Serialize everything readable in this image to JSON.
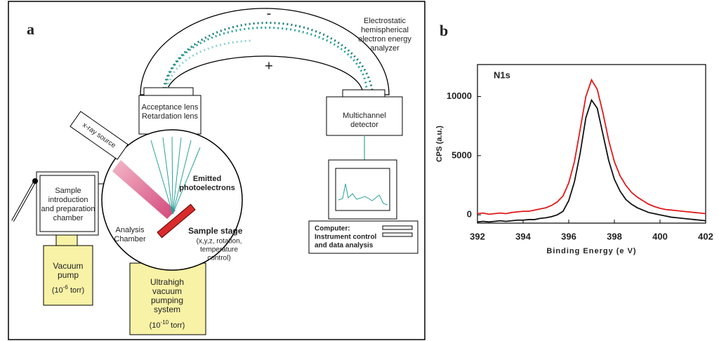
{
  "diagram": {
    "label": "a",
    "analyzer": [
      "Electrostatic",
      "hemispherical",
      "electron energy",
      "analyzer"
    ],
    "minus": "-",
    "plus": "+",
    "lens": [
      "Acceptance lens",
      "Retardation lens"
    ],
    "detector": [
      "Multichannel",
      "detector"
    ],
    "xray": "x-ray source",
    "emitted": [
      "Emitted",
      "photoelectrons"
    ],
    "intro": [
      "Sample",
      "introduction",
      "and preparation",
      "chamber"
    ],
    "analysis": [
      "Analysis",
      "Chamber"
    ],
    "stage": [
      "Sample stage",
      "(x,y,z, rotation,",
      "temperature",
      "control)"
    ],
    "computer": [
      "Computer:",
      "Instrument control",
      "and data analysis"
    ],
    "pump": {
      "lines": [
        "Vacuum",
        "pump"
      ],
      "pressure": [
        "(10",
        "-6",
        " torr)"
      ]
    },
    "uhv": {
      "lines": [
        "Ultrahigh",
        "vacuum",
        "pumping",
        "system"
      ],
      "pressure": [
        "(10",
        "-10",
        " torr)"
      ]
    }
  },
  "chart_data": {
    "type": "line",
    "label": "b",
    "title": "N1s",
    "x_label": "Binding Energy (e V)",
    "y_label": "CPS (a.u.)",
    "xlim": [
      392,
      402
    ],
    "xticks": [
      392,
      394,
      396,
      398,
      400,
      402
    ],
    "ylim": [
      -700,
      12700
    ],
    "yticks": [
      0,
      5000,
      10000
    ],
    "x": [
      392,
      392.25,
      392.5,
      392.75,
      393,
      393.25,
      393.5,
      393.75,
      394,
      394.25,
      394.5,
      394.75,
      395,
      395.25,
      395.5,
      395.75,
      396,
      396.25,
      396.5,
      396.75,
      397,
      397.25,
      397.5,
      397.75,
      398,
      398.25,
      398.5,
      398.75,
      399,
      399.25,
      399.5,
      399.75,
      400,
      400.25,
      400.5,
      400.75,
      401,
      401.25,
      401.5,
      401.75,
      402
    ],
    "series": [
      {
        "color": "#e0191b",
        "values": [
          100,
          150,
          50,
          100,
          150,
          100,
          200,
          250,
          300,
          300,
          400,
          500,
          600,
          800,
          1100,
          1600,
          2700,
          4500,
          7200,
          10000,
          11400,
          10600,
          8600,
          6300,
          4500,
          3300,
          2500,
          1900,
          1500,
          1200,
          900,
          700,
          550,
          450,
          400,
          350,
          300,
          250,
          200,
          150,
          100
        ]
      },
      {
        "color": "#111111",
        "values": [
          -600,
          -550,
          -600,
          -550,
          -500,
          -550,
          -500,
          -450,
          -450,
          -400,
          -400,
          -300,
          -250,
          -150,
          0,
          300,
          1200,
          2800,
          5200,
          8200,
          9700,
          9000,
          6800,
          4600,
          3000,
          2000,
          1300,
          900,
          600,
          400,
          200,
          100,
          0,
          -100,
          -200,
          -250,
          -300,
          -350,
          -400,
          -450,
          -500
        ]
      }
    ]
  }
}
